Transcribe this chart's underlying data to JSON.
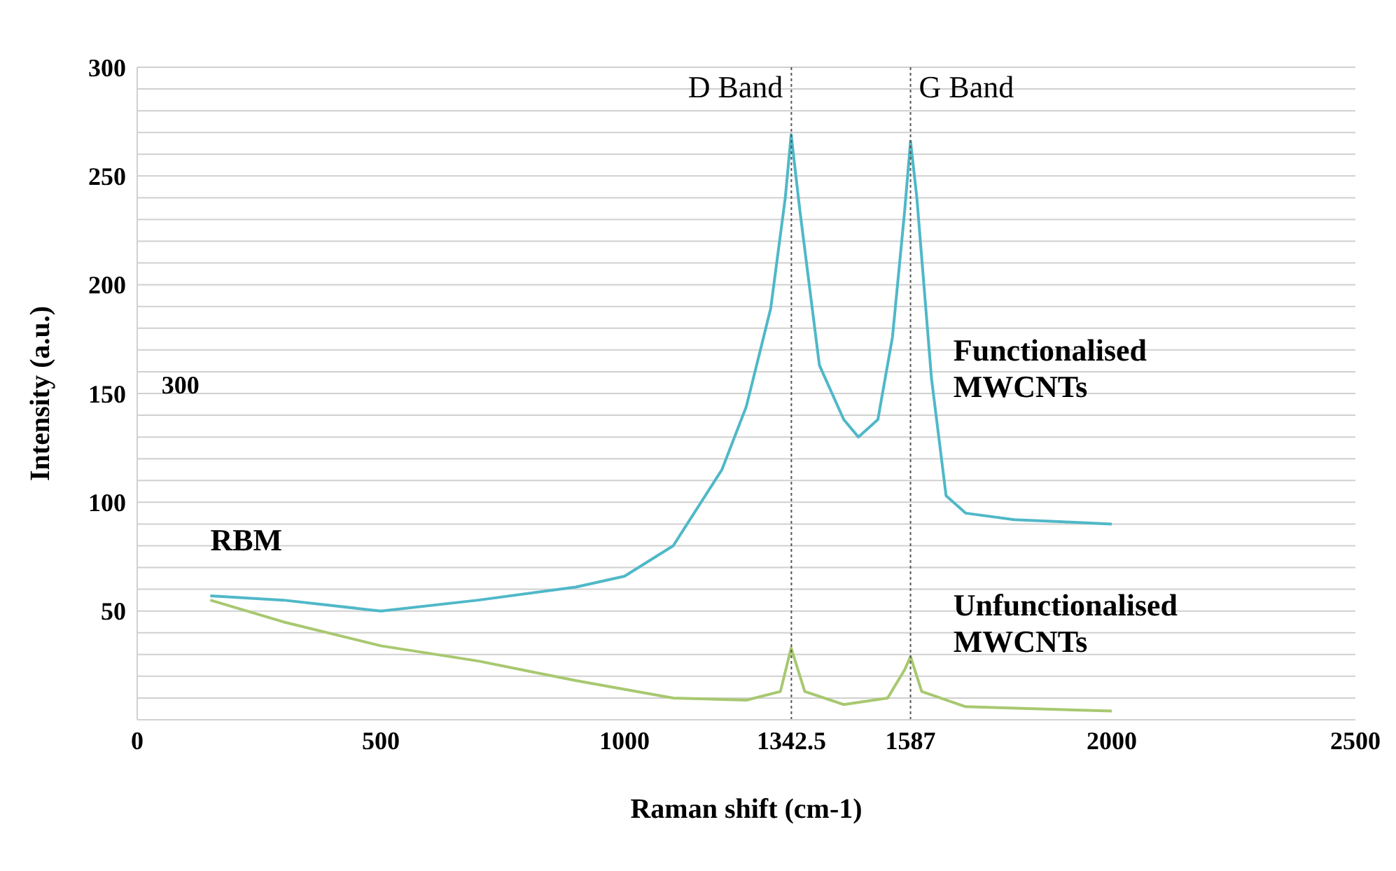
{
  "chart_data": {
    "type": "line",
    "xlabel": "Raman shift (cm-1)",
    "ylabel": "Intensity (a.u.)",
    "xlim": [
      0,
      2500
    ],
    "xticks": [
      0,
      500,
      1000,
      1342.5,
      1587,
      2000,
      2500
    ],
    "ylim": [
      0,
      300
    ],
    "yticks": [
      {
        "value": 0,
        "label": null
      },
      {
        "value": 10,
        "label": null
      },
      {
        "value": 20,
        "label": null
      },
      {
        "value": 30,
        "label": null
      },
      {
        "value": 40,
        "label": null
      },
      50,
      {
        "value": 60,
        "label": null
      },
      {
        "value": 70,
        "label": null
      },
      {
        "value": 80,
        "label": null
      },
      {
        "value": 90,
        "label": null
      },
      100,
      {
        "value": 110,
        "label": null
      },
      {
        "value": 120,
        "label": null
      },
      {
        "value": 130,
        "label": null
      },
      {
        "value": 140,
        "label": null
      },
      150,
      {
        "value": 160,
        "label": null
      },
      {
        "value": 170,
        "label": null
      },
      {
        "value": 180,
        "label": null
      },
      {
        "value": 190,
        "label": null
      },
      200,
      {
        "value": 210,
        "label": null
      },
      {
        "value": 220,
        "label": null
      },
      {
        "value": 230,
        "label": null
      },
      {
        "value": 240,
        "label": null
      },
      250,
      {
        "value": 260,
        "label": null
      },
      {
        "value": 270,
        "label": null
      },
      {
        "value": 280,
        "label": null
      },
      {
        "value": 290,
        "label": null
      },
      300
    ],
    "grid": "y",
    "marker": "none",
    "line_style": "solid",
    "series": [
      {
        "color": "#4fb8c8",
        "x": [
          150,
          300,
          500,
          700,
          900,
          1000,
          1100,
          1200,
          1250,
          1300,
          1330,
          1342,
          1360,
          1400,
          1450,
          1480,
          1520,
          1550,
          1575,
          1587,
          1600,
          1630,
          1660,
          1700,
          1800,
          1900,
          2000
        ],
        "values": [
          57,
          55,
          50,
          55,
          61,
          66,
          80,
          115,
          144,
          189,
          240,
          269,
          234,
          163,
          138,
          130,
          138,
          176,
          234,
          266,
          240,
          157,
          103,
          95,
          92,
          91,
          90
        ]
      },
      {
        "color": "#a8c870",
        "x": [
          150,
          300,
          500,
          700,
          900,
          1100,
          1250,
          1320,
          1342,
          1370,
          1450,
          1540,
          1575,
          1587,
          1610,
          1700,
          2000
        ],
        "values": [
          55,
          45,
          34,
          27,
          18,
          10,
          9,
          13,
          33,
          13,
          7,
          10,
          23,
          29,
          13,
          6,
          4
        ]
      }
    ],
    "ref_lines": [
      {
        "axis": "x",
        "value": 1342.5,
        "label": "D Band",
        "line_style": "dotted",
        "color": "#555555"
      },
      {
        "axis": "x",
        "value": 1587,
        "label": "G Band",
        "line_style": "dotted",
        "color": "#555555"
      }
    ],
    "annotations": [
      "Functionalised MWCNTs",
      "Unfunctionalised MWCNTs",
      "RBM",
      "300"
    ]
  }
}
